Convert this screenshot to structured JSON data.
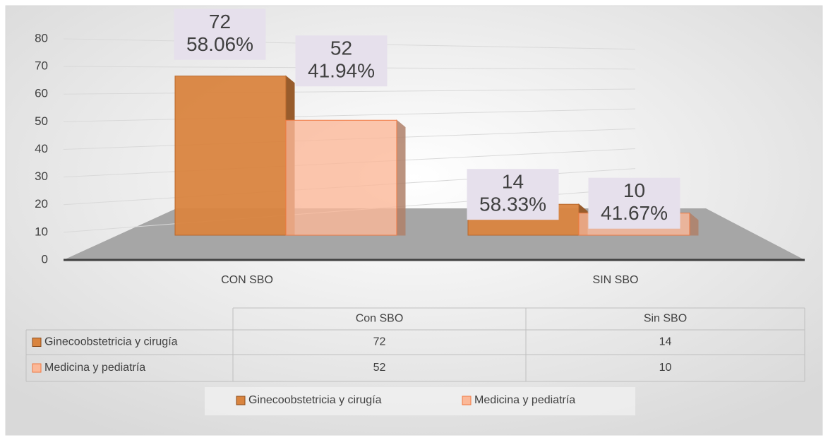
{
  "chart_data": {
    "type": "bar3d",
    "categories": [
      "CON SBO",
      "SIN SBO"
    ],
    "series": [
      {
        "name": "Ginecoobstetricia y cirugía",
        "color": "#d9843f",
        "values": [
          72,
          14
        ],
        "percent_labels": [
          "58.06%",
          "58.33%"
        ]
      },
      {
        "name": "Medicina y pediatría",
        "color": "#fbb898",
        "values": [
          52,
          10
        ],
        "percent_labels": [
          "41.94%",
          "41.67%"
        ]
      }
    ],
    "ylim": [
      0,
      80
    ],
    "yticks": [
      0,
      10,
      20,
      30,
      40,
      50,
      60,
      70,
      80
    ],
    "grid": true,
    "data_table": {
      "columns": [
        "Con SBO",
        "Sin SBO"
      ]
    },
    "legend": "bottom"
  }
}
